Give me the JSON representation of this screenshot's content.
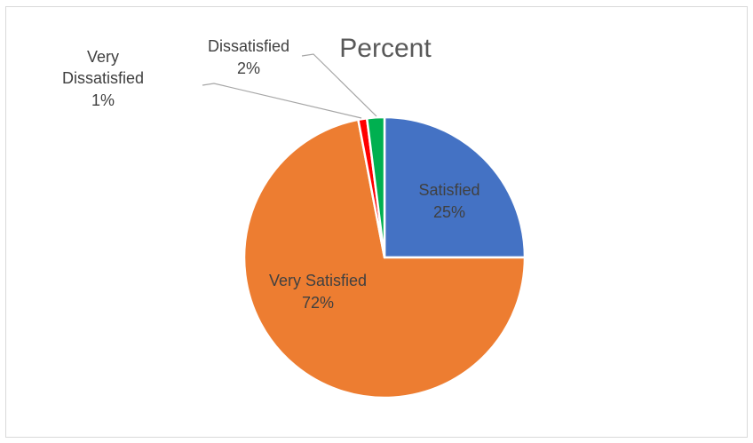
{
  "chart_data": {
    "type": "pie",
    "title": "Percent",
    "categories": [
      "Satisfied",
      "Very Satisfied",
      "Very Dissatisfied",
      "Dissatisfied"
    ],
    "values": [
      25,
      72,
      1,
      2
    ],
    "labels": [
      "25%",
      "72%",
      "1%",
      "2%"
    ],
    "colors": [
      "#4472c4",
      "#ed7d31",
      "#ff0000",
      "#00b050"
    ],
    "legend": "none"
  }
}
